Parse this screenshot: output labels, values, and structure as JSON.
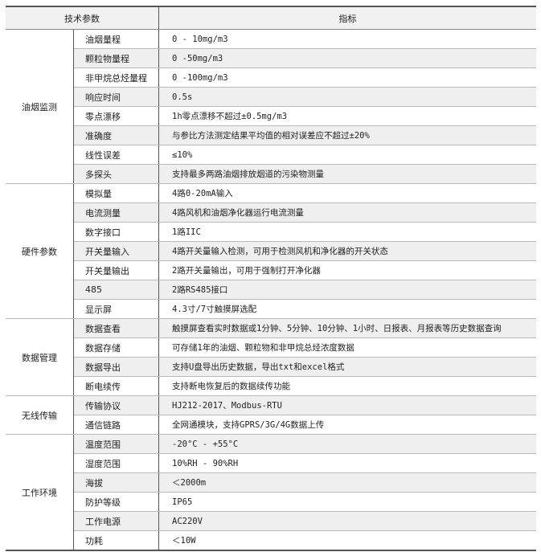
{
  "header": {
    "param": "技术参数",
    "spec": "指标"
  },
  "groups": [
    {
      "name": "油烟监测",
      "rows": [
        [
          "油烟量程",
          "0 - 10mg/m3"
        ],
        [
          "颗粒物量程",
          "0 -50mg/m3"
        ],
        [
          "非甲烷总烃量程",
          "0 -100mg/m3"
        ],
        [
          "响应时间",
          "0.5s"
        ],
        [
          "零点漂移",
          "1h零点漂移不超过±0.5mg/m3"
        ],
        [
          "准确度",
          "与参比方法测定结果平均值的相对误差应不超过±20%"
        ],
        [
          "线性误差",
          "≤10%"
        ],
        [
          "多探头",
          "支持最多两路油烟排放烟道的污染物测量"
        ]
      ]
    },
    {
      "name": "硬件参数",
      "rows": [
        [
          "模拟量",
          "4路0-20mA输入"
        ],
        [
          "电流测量",
          "4路风机和油烟净化器运行电流测量"
        ],
        [
          "数字接口",
          "1路IIC"
        ],
        [
          "开关量输入",
          "4路开关量输入检测，可用于检测风机和净化器的开关状态"
        ],
        [
          "开关量输出",
          "2路开关量输出，可用于强制打开净化器"
        ],
        [
          "485",
          "2路RS485接口"
        ],
        [
          "显示屏",
          "4.3寸/7寸触摸屏选配"
        ]
      ]
    },
    {
      "name": "数据管理",
      "rows": [
        [
          "数据查看",
          "触摸屏查看实时数据或1分钟、5分钟、10分钟、1小时、日报表、月报表等历史数据查询"
        ],
        [
          "数据存储",
          "可存储1年的油烟、颗粒物和非甲烷总烃浓度数据"
        ],
        [
          "数据导出",
          "支持U盘导出历史数据，导出txt和excel格式"
        ],
        [
          "断电续传",
          "支持断电恢复后的数据续传功能"
        ]
      ]
    },
    {
      "name": "无线传输",
      "rows": [
        [
          "传输协议",
          "HJ212-2017、Modbus-RTU"
        ],
        [
          "通信链路",
          "全网通模块，支持GPRS/3G/4G数据上传"
        ]
      ]
    },
    {
      "name": "工作环境",
      "rows": [
        [
          "温度范围",
          "-20°C - +55°C"
        ],
        [
          "湿度范围",
          "10%RH - 90%RH"
        ],
        [
          "海拔",
          "＜2000m"
        ],
        [
          "防护等级",
          "IP65"
        ],
        [
          "工作电源",
          "AC220V"
        ],
        [
          "功耗",
          "＜10W"
        ]
      ]
    }
  ]
}
